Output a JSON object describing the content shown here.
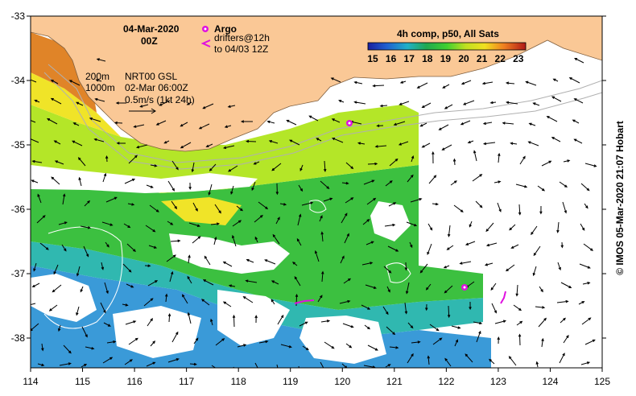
{
  "title": {
    "date": "04-Mar-2020",
    "time": "00Z"
  },
  "legend_argo": {
    "label": "Argo",
    "drifters_line1": "drifters@12h",
    "drifters_line2": "to 04/03 12Z"
  },
  "colorbar": {
    "title": "4h comp, p50, All Sats",
    "ticks": [
      "15",
      "16",
      "17",
      "18",
      "19",
      "20",
      "21",
      "22",
      "23"
    ]
  },
  "notes": {
    "contour_200": "200m",
    "contour_1000": "1000m",
    "product": "NRT00 GSL",
    "product_time": "02-Mar 06:00Z",
    "scale": "0.5m/s (1kt 24h)"
  },
  "credit": "© IMOS 05-Mar-2020 21:07 Hobart",
  "axes": {
    "lon_ticks": [
      "114",
      "115",
      "116",
      "117",
      "118",
      "119",
      "120",
      "121",
      "122",
      "123",
      "124",
      "125"
    ],
    "lat_ticks": [
      "-33",
      "-34",
      "-35",
      "-36",
      "-37",
      "-38"
    ]
  },
  "colors": {
    "land": "#fac896",
    "argo": "#e010e0",
    "cloud": "#ffffff"
  }
}
